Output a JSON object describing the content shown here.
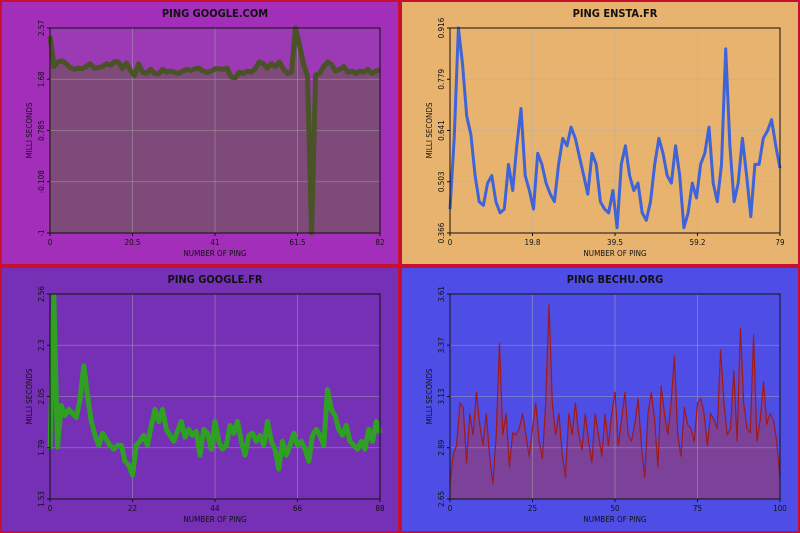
{
  "chart_data": [
    {
      "type": "area",
      "title": "PING GOOGLE.COM",
      "xlabel": "NUMBER OF PING",
      "ylabel": "MILLI SECONDS",
      "xlim": [
        0,
        82
      ],
      "ylim": [
        -1,
        2.57
      ],
      "x_ticks": [
        "0",
        "20.5",
        "41",
        "61.5",
        "82"
      ],
      "y_ticks": [
        "-1",
        "-0.108",
        "0.785",
        "1.68",
        "2.57"
      ],
      "colors": {
        "background": "#a32eba",
        "plot_bg": "#9b3ab4",
        "fill": "#7e4a79",
        "line": "#4a5228"
      },
      "line_width": 5,
      "series": [
        {
          "values": [
            2.43,
            1.9,
            1.98,
            2.0,
            1.95,
            1.88,
            1.85,
            1.87,
            1.86,
            1.9,
            1.95,
            1.87,
            1.88,
            1.9,
            1.95,
            1.92,
            1.98,
            1.98,
            1.86,
            1.96,
            1.83,
            1.74,
            1.95,
            1.8,
            1.78,
            1.85,
            1.78,
            1.77,
            1.85,
            1.8,
            1.82,
            1.8,
            1.78,
            1.82,
            1.85,
            1.83,
            1.86,
            1.87,
            1.82,
            1.8,
            1.82,
            1.86,
            1.86,
            1.85,
            1.87,
            1.72,
            1.7,
            1.8,
            1.78,
            1.82,
            1.8,
            1.86,
            1.98,
            1.95,
            1.87,
            1.95,
            1.9,
            1.98,
            1.85,
            1.78,
            1.8,
            2.57,
            2.27,
            1.95,
            1.72,
            -1.0,
            1.75,
            1.78,
            1.9,
            1.98,
            1.93,
            1.82,
            1.85,
            1.9,
            1.8,
            1.82,
            1.78,
            1.82,
            1.8,
            1.85,
            1.78,
            1.82,
            1.85
          ]
        }
      ]
    },
    {
      "type": "line",
      "title": "PING ENSTA.FR",
      "xlabel": "NUMBER OF PING",
      "ylabel": "MILLI SECONDS",
      "xlim": [
        0,
        79
      ],
      "ylim": [
        0.366,
        0.916
      ],
      "x_ticks": [
        "0",
        "19.8",
        "39.5",
        "59.2",
        "79"
      ],
      "y_ticks": [
        "0.366",
        "0.503",
        "0.641",
        "0.779",
        "0.916"
      ],
      "colors": {
        "background": "#e8b36e",
        "plot_bg": "#e8b36e",
        "line": "#3f63d8"
      },
      "line_width": 3,
      "series": [
        {
          "values": [
            0.43,
            0.62,
            0.916,
            0.82,
            0.68,
            0.63,
            0.52,
            0.45,
            0.44,
            0.5,
            0.52,
            0.45,
            0.42,
            0.43,
            0.55,
            0.48,
            0.6,
            0.7,
            0.52,
            0.48,
            0.43,
            0.58,
            0.55,
            0.5,
            0.47,
            0.45,
            0.55,
            0.62,
            0.6,
            0.65,
            0.62,
            0.57,
            0.52,
            0.47,
            0.58,
            0.55,
            0.45,
            0.43,
            0.42,
            0.48,
            0.38,
            0.55,
            0.6,
            0.52,
            0.48,
            0.5,
            0.42,
            0.4,
            0.45,
            0.55,
            0.62,
            0.58,
            0.52,
            0.5,
            0.6,
            0.52,
            0.38,
            0.42,
            0.5,
            0.46,
            0.55,
            0.58,
            0.65,
            0.5,
            0.45,
            0.55,
            0.86,
            0.6,
            0.45,
            0.5,
            0.62,
            0.52,
            0.41,
            0.55,
            0.55,
            0.62,
            0.64,
            0.67,
            0.6,
            0.54
          ]
        }
      ]
    },
    {
      "type": "line",
      "title": "PING GOOGLE.FR",
      "xlabel": "NUMBER OF PING",
      "ylabel": "MILLI SECONDS",
      "xlim": [
        0,
        88
      ],
      "ylim": [
        1.53,
        2.56
      ],
      "x_ticks": [
        "0",
        "22",
        "44",
        "66",
        "88"
      ],
      "y_ticks": [
        "1.53",
        "1.79",
        "2.05",
        "2.3",
        "2.56"
      ],
      "colors": {
        "background": "#7530b5",
        "plot_bg": "#7530b5",
        "line": "#2fa024"
      },
      "line_width": 5,
      "series": [
        {
          "values": [
            1.78,
            2.55,
            1.79,
            2.0,
            1.95,
            1.98,
            1.96,
            1.94,
            2.03,
            2.2,
            2.05,
            1.92,
            1.85,
            1.8,
            1.86,
            1.83,
            1.8,
            1.78,
            1.8,
            1.8,
            1.72,
            1.7,
            1.65,
            1.8,
            1.82,
            1.85,
            1.8,
            1.9,
            1.98,
            1.92,
            1.98,
            1.88,
            1.85,
            1.82,
            1.87,
            1.92,
            1.84,
            1.88,
            1.85,
            1.87,
            1.75,
            1.88,
            1.86,
            1.78,
            1.92,
            1.82,
            1.78,
            1.8,
            1.9,
            1.86,
            1.92,
            1.82,
            1.75,
            1.85,
            1.86,
            1.82,
            1.85,
            1.8,
            1.92,
            1.82,
            1.78,
            1.68,
            1.82,
            1.75,
            1.8,
            1.86,
            1.8,
            1.82,
            1.78,
            1.72,
            1.85,
            1.88,
            1.85,
            1.8,
            2.08,
            1.98,
            1.95,
            1.88,
            1.85,
            1.9,
            1.82,
            1.8,
            1.78,
            1.82,
            1.78,
            1.88,
            1.82,
            1.92,
            1.86
          ]
        }
      ]
    },
    {
      "type": "area",
      "title": "PING BECHU.ORG",
      "xlabel": "NUMBER OF PING",
      "ylabel": "MILLI SECONDS",
      "xlim": [
        0,
        100
      ],
      "ylim": [
        2.65,
        3.61
      ],
      "x_ticks": [
        "0",
        "25",
        "50",
        "75",
        "100"
      ],
      "y_ticks": [
        "2.65",
        "2.89",
        "3.13",
        "3.37",
        "3.61"
      ],
      "colors": {
        "background": "#4e4ee6",
        "plot_bg": "#4e4ee6",
        "fill": "#7c429a",
        "line": "#9e1a1a"
      },
      "line_width": 1.2,
      "series": [
        {
          "values": [
            2.72,
            2.86,
            2.9,
            3.1,
            3.08,
            2.82,
            3.05,
            2.95,
            3.15,
            3.0,
            2.9,
            3.05,
            2.85,
            2.72,
            2.95,
            3.38,
            2.95,
            3.05,
            2.8,
            2.96,
            2.95,
            2.98,
            3.05,
            2.95,
            2.85,
            2.98,
            3.1,
            2.92,
            2.84,
            3.1,
            3.56,
            3.1,
            2.95,
            3.05,
            2.86,
            2.75,
            3.05,
            2.95,
            3.1,
            2.95,
            2.88,
            3.05,
            2.92,
            2.82,
            3.05,
            2.95,
            2.85,
            3.05,
            2.9,
            3.05,
            3.15,
            2.9,
            3.02,
            3.15,
            2.95,
            2.92,
            3.0,
            3.12,
            2.9,
            2.75,
            3.05,
            3.15,
            3.02,
            2.8,
            3.18,
            3.05,
            2.95,
            3.1,
            3.32,
            2.95,
            2.85,
            3.08,
            3.0,
            2.98,
            2.92,
            3.1,
            3.12,
            3.05,
            2.9,
            3.05,
            3.02,
            2.98,
            3.35,
            3.1,
            2.95,
            2.98,
            3.25,
            2.92,
            3.45,
            3.1,
            2.98,
            2.96,
            3.42,
            2.92,
            3.02,
            3.2,
            3.0,
            3.05,
            3.02,
            2.92,
            2.75
          ]
        }
      ]
    }
  ]
}
